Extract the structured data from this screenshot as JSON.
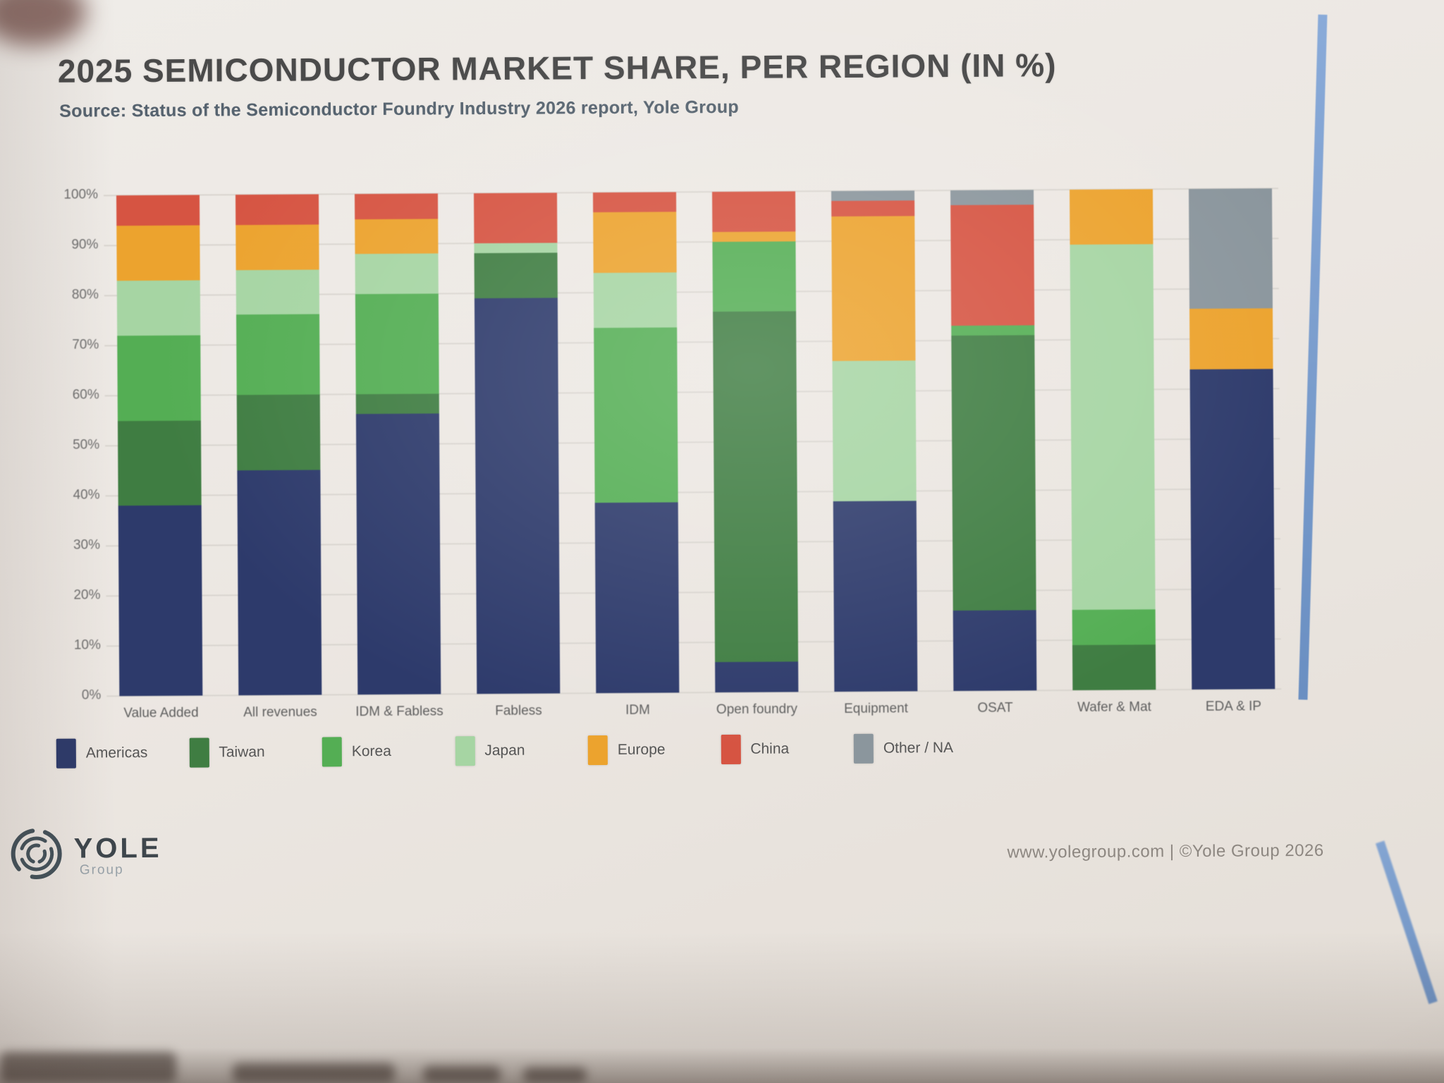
{
  "slide": {
    "title": "2025 SEMICONDUCTOR MARKET SHARE, PER REGION (IN %)",
    "subtitle": "Source: Status of the Semiconductor Foundry Industry 2026 report, Yole Group",
    "footer": "www.yolegroup.com | ©Yole Group 2026",
    "logo": {
      "name": "YOLE",
      "sub": "Group"
    }
  },
  "chart_data": {
    "type": "bar",
    "stacked": true,
    "unit": "%",
    "title": "2025 SEMICONDUCTOR MARKET SHARE, PER REGION (IN %)",
    "xlabel": "",
    "ylabel": "",
    "ylim": [
      0,
      100
    ],
    "grid": true,
    "legend_position": "bottom",
    "axis": {
      "ticks": [
        "0%",
        "10%",
        "20%",
        "30%",
        "40%",
        "50%",
        "60%",
        "70%",
        "80%",
        "90%",
        "100%"
      ]
    },
    "categories": [
      "Value Added",
      "All revenues",
      "IDM & Fabless",
      "Fabless",
      "IDM",
      "Open foundry",
      "Equipment",
      "OSAT",
      "Wafer & Mat",
      "EDA & IP"
    ],
    "series": [
      {
        "name": "Americas",
        "color": "#2d3a6b",
        "values": [
          38,
          45,
          56,
          79,
          38,
          6,
          38,
          16,
          0,
          64
        ]
      },
      {
        "name": "Taiwan",
        "color": "#3f7d42",
        "values": [
          17,
          15,
          4,
          9,
          0,
          70,
          0,
          55,
          9,
          0
        ]
      },
      {
        "name": "Korea",
        "color": "#54ae54",
        "values": [
          17,
          16,
          20,
          0,
          35,
          14,
          0,
          2,
          7,
          0
        ]
      },
      {
        "name": "Japan",
        "color": "#a6d5a3",
        "values": [
          11,
          9,
          8,
          2,
          11,
          0,
          28,
          0,
          73,
          0
        ]
      },
      {
        "name": "Europe",
        "color": "#eca32e",
        "values": [
          11,
          9,
          7,
          0,
          12,
          2,
          29,
          0,
          11,
          12
        ]
      },
      {
        "name": "China",
        "color": "#d65442",
        "values": [
          6,
          6,
          5,
          10,
          4,
          8,
          3,
          24,
          0,
          0
        ]
      },
      {
        "name": "Other / NA",
        "color": "#8b969d",
        "values": [
          0,
          0,
          0,
          0,
          0,
          0,
          2,
          3,
          0,
          24
        ]
      }
    ]
  }
}
